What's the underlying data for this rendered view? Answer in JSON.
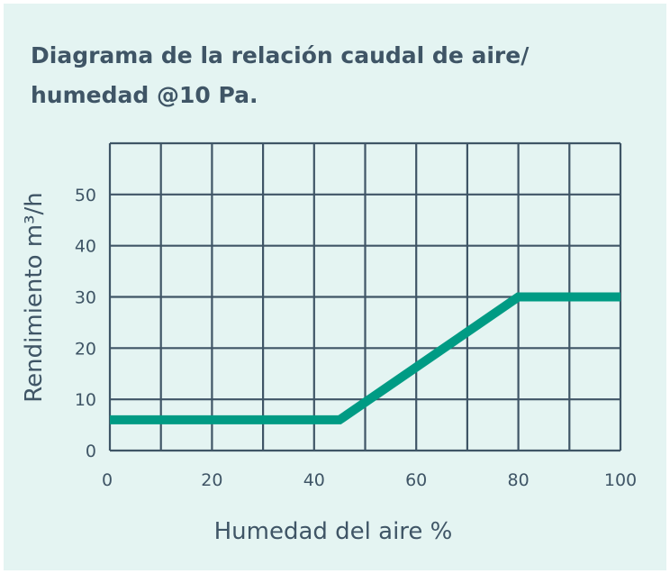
{
  "chart_data": {
    "type": "line",
    "title": "Diagrama de la relación caudal de aire/ humedad @10 Pa.",
    "xlabel": "Humedad del aire %",
    "ylabel": "Rendimiento m³/h",
    "xlim": [
      0,
      100
    ],
    "ylim": [
      0,
      60
    ],
    "xticks": [
      0,
      20,
      40,
      60,
      80,
      100
    ],
    "yticks": [
      0,
      10,
      20,
      30,
      40,
      50
    ],
    "grid": true,
    "series": [
      {
        "x": [
          0,
          45,
          80,
          100
        ],
        "y": [
          6,
          6,
          30,
          30
        ],
        "color": "#009b84"
      }
    ]
  },
  "colors": {
    "background": "#e4f4f2",
    "grid": "#3f5566",
    "text": "#3f5566"
  }
}
